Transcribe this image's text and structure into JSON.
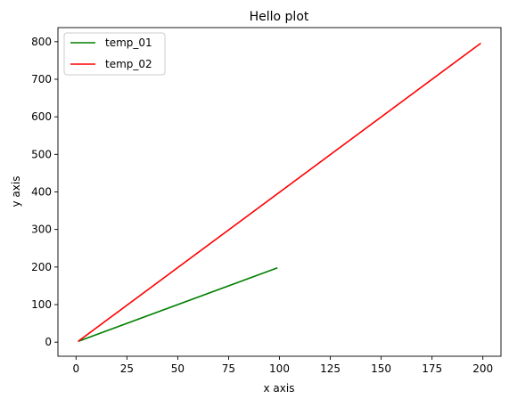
{
  "chart_data": {
    "type": "line",
    "title": "Hello plot",
    "xlabel": "x axis",
    "ylabel": "y axis",
    "xlim": [
      -8.9,
      208.9
    ],
    "ylim": [
      -37.5,
      837.5
    ],
    "x_ticks": [
      0,
      25,
      50,
      75,
      100,
      125,
      150,
      175,
      200
    ],
    "y_ticks": [
      0,
      100,
      200,
      300,
      400,
      500,
      600,
      700,
      800
    ],
    "grid": false,
    "legend_position": "top-left",
    "series": [
      {
        "name": "temp_01",
        "color": "#008000",
        "x": [
          1,
          99
        ],
        "y": [
          2,
          198
        ]
      },
      {
        "name": "temp_02",
        "color": "#ff0000",
        "x": [
          1,
          199
        ],
        "y": [
          2,
          796
        ]
      }
    ]
  }
}
